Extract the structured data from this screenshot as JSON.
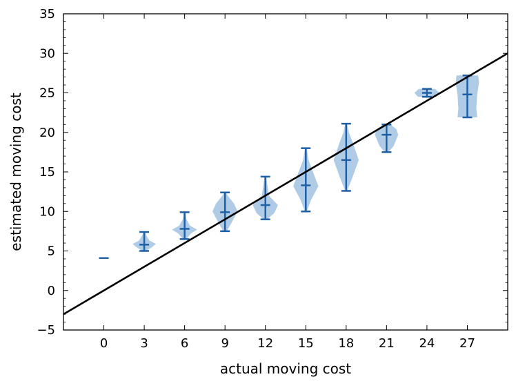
{
  "chart_data": {
    "type": "violin",
    "title": "",
    "xlabel": "actual moving cost",
    "ylabel": "estimated moving cost",
    "xlim": [
      -3,
      30
    ],
    "ylim": [
      -5,
      35
    ],
    "xticks": [
      0,
      3,
      6,
      9,
      12,
      15,
      18,
      21,
      24,
      27
    ],
    "yticks": [
      -5,
      0,
      5,
      10,
      15,
      20,
      25,
      30,
      35
    ],
    "xtick_labels": [
      "0",
      "3",
      "6",
      "9",
      "12",
      "15",
      "18",
      "21",
      "24",
      "27"
    ],
    "ytick_labels": [
      "−5",
      "0",
      "5",
      "10",
      "15",
      "20",
      "25",
      "30",
      "35"
    ],
    "grid": false,
    "colors": {
      "violin_fill": "#8fb5dc",
      "violin_line": "#1f5fa6",
      "reference_line": "#000000"
    },
    "violins": [
      {
        "x": 0,
        "min": 4.1,
        "median": 4.1,
        "max": 4.1,
        "shape": [
          [
            4.1,
            0.5
          ]
        ]
      },
      {
        "x": 3,
        "min": 5.0,
        "median": 5.8,
        "max": 7.4,
        "shape": [
          [
            5.0,
            0.2
          ],
          [
            5.5,
            0.9
          ],
          [
            5.9,
            1.3
          ],
          [
            6.3,
            0.6
          ],
          [
            7.0,
            0.2
          ],
          [
            7.4,
            0.1
          ]
        ]
      },
      {
        "x": 6,
        "min": 6.5,
        "median": 7.8,
        "max": 9.9,
        "shape": [
          [
            6.5,
            0.2
          ],
          [
            7.2,
            0.7
          ],
          [
            7.7,
            1.4
          ],
          [
            8.2,
            0.6
          ],
          [
            9.0,
            0.2
          ],
          [
            9.9,
            0.1
          ]
        ]
      },
      {
        "x": 9,
        "min": 7.5,
        "median": 9.9,
        "max": 12.4,
        "shape": [
          [
            7.5,
            0.2
          ],
          [
            8.5,
            0.7
          ],
          [
            10.0,
            1.4
          ],
          [
            11.0,
            1.0
          ],
          [
            12.0,
            0.3
          ],
          [
            12.4,
            0.1
          ]
        ]
      },
      {
        "x": 12,
        "min": 9.0,
        "median": 10.8,
        "max": 14.4,
        "shape": [
          [
            9.0,
            0.2
          ],
          [
            9.8,
            1.0
          ],
          [
            10.8,
            1.4
          ],
          [
            12.0,
            0.4
          ],
          [
            13.5,
            0.2
          ],
          [
            14.4,
            0.1
          ]
        ]
      },
      {
        "x": 15,
        "min": 10.0,
        "median": 13.3,
        "max": 18.0,
        "shape": [
          [
            10.0,
            0.1
          ],
          [
            11.5,
            0.6
          ],
          [
            13.2,
            1.4
          ],
          [
            15.0,
            0.8
          ],
          [
            16.5,
            0.3
          ],
          [
            18.0,
            0.1
          ]
        ]
      },
      {
        "x": 18,
        "min": 12.6,
        "median": 16.5,
        "max": 21.1,
        "shape": [
          [
            12.6,
            0.1
          ],
          [
            14.0,
            0.6
          ],
          [
            16.5,
            1.4
          ],
          [
            18.5,
            0.8
          ],
          [
            20.0,
            0.3
          ],
          [
            21.1,
            0.1
          ]
        ]
      },
      {
        "x": 21,
        "min": 17.5,
        "median": 19.7,
        "max": 21.0,
        "shape": [
          [
            17.5,
            0.2
          ],
          [
            18.3,
            0.8
          ],
          [
            19.7,
            1.3
          ],
          [
            20.4,
            1.1
          ],
          [
            21.0,
            0.4
          ]
        ]
      },
      {
        "x": 24,
        "min": 24.5,
        "median": 25.0,
        "max": 25.5,
        "shape": [
          [
            24.5,
            1.0
          ],
          [
            25.0,
            1.4
          ],
          [
            25.5,
            0.9
          ]
        ]
      },
      {
        "x": 27,
        "min": 21.9,
        "median": 24.8,
        "max": 27.2,
        "shape": [
          [
            21.9,
            1.1
          ],
          [
            23.0,
            1.0
          ],
          [
            24.8,
            1.1
          ],
          [
            26.3,
            1.3
          ],
          [
            27.2,
            1.2
          ]
        ]
      }
    ],
    "reference_line": {
      "points": [
        [
          -3,
          -3
        ],
        [
          30,
          30
        ]
      ]
    }
  }
}
